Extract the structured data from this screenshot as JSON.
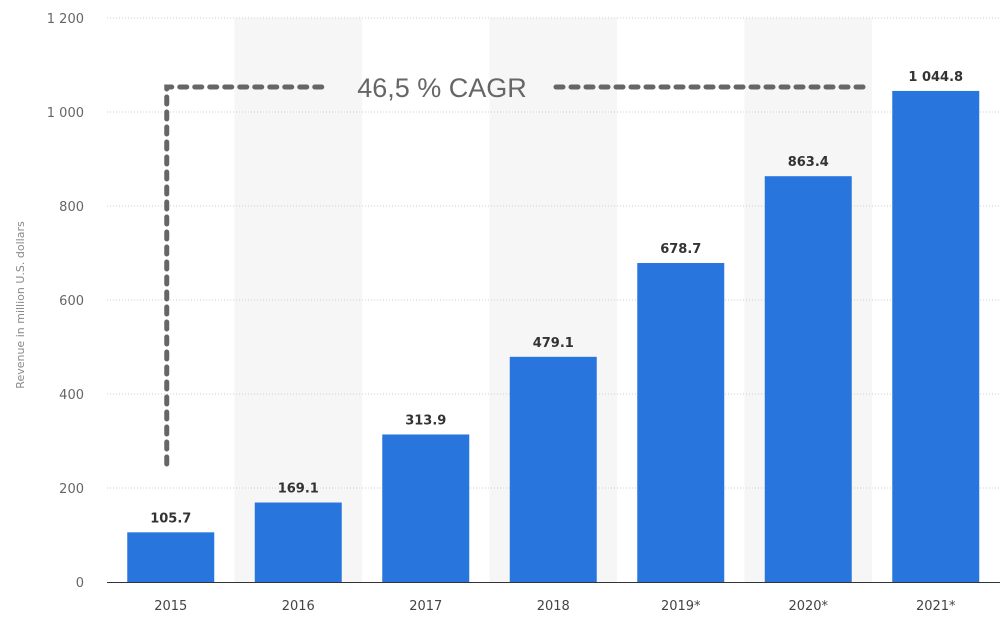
{
  "chart_data": {
    "type": "bar",
    "title": "",
    "xlabel": "",
    "ylabel": "Revenue in million U.S. dollars",
    "categories": [
      "2015",
      "2016",
      "2017",
      "2018",
      "2019*",
      "2020*",
      "2021*"
    ],
    "values": [
      105.7,
      169.1,
      313.9,
      479.1,
      678.7,
      863.4,
      1044.8
    ],
    "value_labels": [
      "105.7",
      "169.1",
      "313.9",
      "479.1",
      "678.7",
      "863.4",
      "1 044.8"
    ],
    "ylim": [
      0,
      1200
    ],
    "yticks": [
      0,
      200,
      400,
      600,
      800,
      1000,
      1200
    ],
    "ytick_labels": [
      "0",
      "200",
      "400",
      "600",
      "800",
      "1 000",
      "1 200"
    ],
    "grid": true,
    "bar_color": "#2876dd",
    "annotation": {
      "text": "46,5 % CAGR"
    }
  }
}
